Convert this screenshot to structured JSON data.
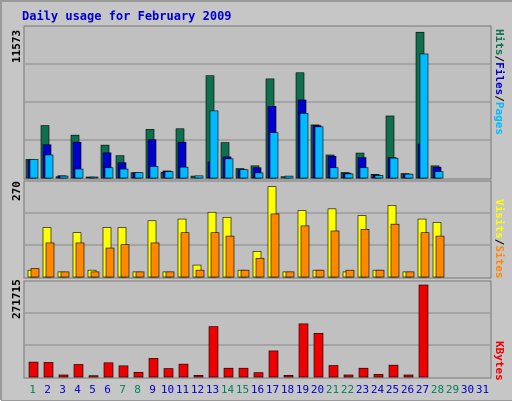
{
  "title": "Daily usage for February 2009",
  "colors": {
    "hits": "#0f6f4f",
    "files": "#0000cc",
    "pages": "#00bbff",
    "visits": "#ffff00",
    "sites": "#ff8800",
    "kbytes": "#ee0000",
    "title": "#0000cc",
    "weekday_label": "#0000cc",
    "weekend_label": "#007f5f"
  },
  "labels": {
    "top_left_max": "11573",
    "mid_left_max": "270",
    "bot_left_max": "271715",
    "right_top": {
      "pages": "Pages",
      "sep1": "/",
      "files": "Files",
      "sep2": "/",
      "hits": "Hits"
    },
    "right_mid": {
      "sites": "Sites",
      "sep": "/",
      "visits": "Visits"
    },
    "right_bot": "KBytes"
  },
  "chart_data": [
    {
      "type": "bar",
      "title": "Daily usage for February 2009",
      "categories": [
        "1",
        "2",
        "3",
        "4",
        "5",
        "6",
        "7",
        "8",
        "9",
        "10",
        "11",
        "12",
        "13",
        "14",
        "15",
        "16",
        "17",
        "18",
        "19",
        "20",
        "21",
        "22",
        "23",
        "24",
        "25",
        "26",
        "27",
        "28",
        "29",
        "30",
        "31"
      ],
      "weekend_days": [
        "1",
        "7",
        "8",
        "14",
        "15",
        "21",
        "22",
        "28",
        "29"
      ],
      "ylim": [
        0,
        11573
      ],
      "series": [
        {
          "name": "Hits",
          "values": [
            1450,
            4100,
            100,
            3350,
            20,
            2570,
            1750,
            420,
            3800,
            450,
            3850,
            150,
            8000,
            2770,
            740,
            950,
            7750,
            100,
            8230,
            4150,
            1800,
            430,
            1950,
            290,
            4850,
            350,
            11400,
            950,
            0,
            0,
            0
          ]
        },
        {
          "name": "Files",
          "values": [
            1400,
            2600,
            180,
            2800,
            0,
            1970,
            1200,
            420,
            3000,
            550,
            2800,
            0,
            1250,
            1650,
            650,
            800,
            5600,
            0,
            6100,
            4100,
            1700,
            380,
            1600,
            220,
            1600,
            300,
            2650,
            850,
            0,
            0,
            0
          ]
        },
        {
          "name": "Pages",
          "values": [
            1450,
            1800,
            150,
            700,
            30,
            800,
            700,
            420,
            900,
            500,
            850,
            170,
            5250,
            1500,
            650,
            400,
            3550,
            150,
            5050,
            4000,
            800,
            320,
            800,
            200,
            1550,
            300,
            9700,
            500,
            0,
            0,
            0
          ]
        }
      ]
    },
    {
      "type": "bar",
      "categories": [
        "1",
        "2",
        "3",
        "4",
        "5",
        "6",
        "7",
        "8",
        "9",
        "10",
        "11",
        "12",
        "13",
        "14",
        "15",
        "16",
        "17",
        "18",
        "19",
        "20",
        "21",
        "22",
        "23",
        "24",
        "25",
        "26",
        "27",
        "28",
        "29",
        "30",
        "31"
      ],
      "ylim": [
        0,
        270
      ],
      "series": [
        {
          "name": "Visits",
          "values": [
            20,
            145,
            15,
            130,
            20,
            145,
            145,
            15,
            165,
            15,
            170,
            35,
            190,
            175,
            20,
            75,
            265,
            15,
            195,
            20,
            200,
            15,
            180,
            20,
            210,
            15,
            170,
            160,
            0,
            0,
            0
          ]
        },
        {
          "name": "Sites",
          "values": [
            25,
            100,
            15,
            100,
            15,
            85,
            95,
            15,
            100,
            15,
            130,
            20,
            130,
            120,
            20,
            55,
            185,
            15,
            150,
            20,
            135,
            20,
            140,
            20,
            155,
            15,
            130,
            120,
            0,
            0,
            0
          ]
        }
      ]
    },
    {
      "type": "bar",
      "categories": [
        "1",
        "2",
        "3",
        "4",
        "5",
        "6",
        "7",
        "8",
        "9",
        "10",
        "11",
        "12",
        "13",
        "14",
        "15",
        "16",
        "17",
        "18",
        "19",
        "20",
        "21",
        "22",
        "23",
        "24",
        "25",
        "26",
        "27",
        "28",
        "29",
        "30",
        "31"
      ],
      "ylim": [
        0,
        271715
      ],
      "series": [
        {
          "name": "KBytes",
          "values": [
            44000,
            43000,
            6000,
            37000,
            4000,
            42000,
            33000,
            14000,
            55000,
            25000,
            38000,
            5000,
            149000,
            26000,
            26000,
            13000,
            77000,
            5000,
            157000,
            129000,
            34000,
            6000,
            26000,
            8000,
            35000,
            6000,
            271715,
            0,
            0,
            0,
            0
          ]
        }
      ]
    }
  ]
}
